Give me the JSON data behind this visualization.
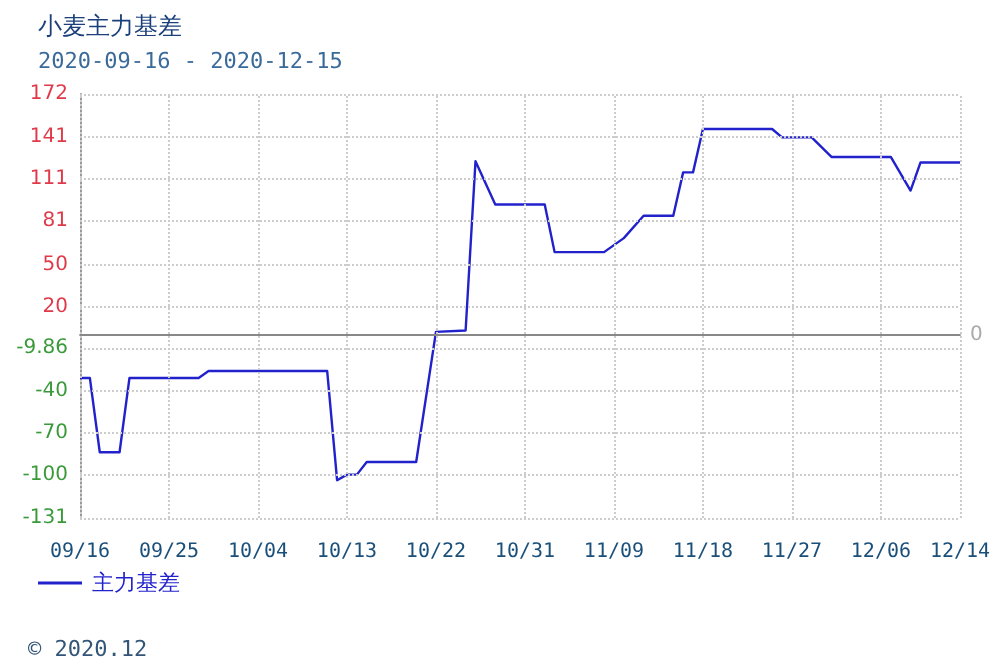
{
  "chart_data": {
    "type": "line",
    "title": "小麦主力基差",
    "subtitle": "2020-09-16 - 2020-12-15",
    "x": [
      "2020-09-16",
      "2020-09-17",
      "2020-09-18",
      "2020-09-20",
      "2020-09-21",
      "2020-09-28",
      "2020-09-29",
      "2020-10-11",
      "2020-10-12",
      "2020-10-13",
      "2020-10-14",
      "2020-10-15",
      "2020-10-20",
      "2020-10-22",
      "2020-10-25",
      "2020-10-26",
      "2020-10-28",
      "2020-11-02",
      "2020-11-03",
      "2020-11-08",
      "2020-11-10",
      "2020-11-12",
      "2020-11-15",
      "2020-11-16",
      "2020-11-17",
      "2020-11-18",
      "2020-11-25",
      "2020-11-26",
      "2020-11-29",
      "2020-12-01",
      "2020-12-07",
      "2020-12-09",
      "2020-12-10",
      "2020-12-14"
    ],
    "series": [
      {
        "name": "主力基差",
        "color": "#2222cc",
        "values": [
          -31,
          -31,
          -84,
          -84,
          -31,
          -31,
          -26,
          -26,
          -104,
          -100,
          -100,
          -91,
          -91,
          2,
          3,
          124,
          93,
          93,
          59,
          59,
          69,
          85,
          85,
          116,
          116,
          147,
          147,
          141,
          141,
          127,
          127,
          103,
          123,
          123
        ]
      }
    ],
    "xlim": [
      "2020-09-16",
      "2020-12-14"
    ],
    "xticks": [
      {
        "value": "2020-09-16",
        "label": "09/16"
      },
      {
        "value": "2020-09-25",
        "label": "09/25"
      },
      {
        "value": "2020-10-04",
        "label": "10/04"
      },
      {
        "value": "2020-10-13",
        "label": "10/13"
      },
      {
        "value": "2020-10-22",
        "label": "10/22"
      },
      {
        "value": "2020-10-31",
        "label": "10/31"
      },
      {
        "value": "2020-11-09",
        "label": "11/09"
      },
      {
        "value": "2020-11-18",
        "label": "11/18"
      },
      {
        "value": "2020-11-27",
        "label": "11/27"
      },
      {
        "value": "2020-12-06",
        "label": "12/06"
      },
      {
        "value": "2020-12-14",
        "label": "12/14"
      }
    ],
    "ylim": [
      -131,
      172
    ],
    "yticks": [
      -131,
      -100,
      -70,
      -40,
      -9.86,
      20,
      50,
      81,
      111,
      141,
      172
    ],
    "ref_lines": [
      {
        "axis": "y",
        "value": 0,
        "label": "0",
        "color": "#888888"
      }
    ],
    "grid": true,
    "legend": "bottom left",
    "marker": "none",
    "annotations": [
      "© 2020.12"
    ]
  }
}
